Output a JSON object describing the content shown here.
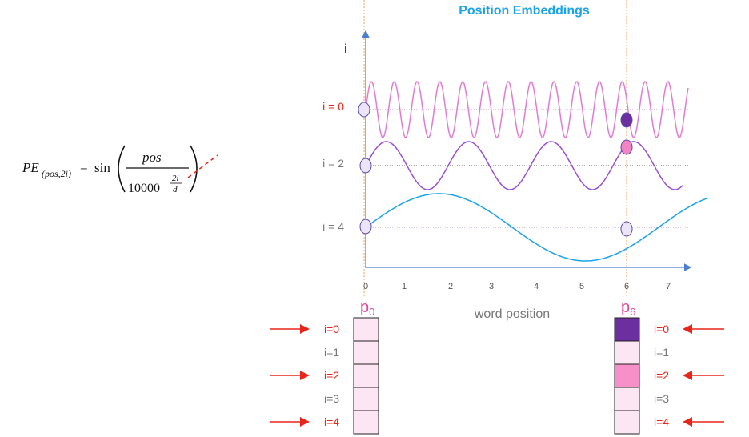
{
  "formula": {
    "lhs": "PE",
    "lhs_sub": "(pos,2i)",
    "equals": "=",
    "fn": "sin",
    "numerator": "pos",
    "base": "10000",
    "exp_num": "2i",
    "exp_den": "d"
  },
  "plot": {
    "title": "Position Embeddings",
    "y_label": "i",
    "rows": [
      "i = 0",
      "i = 2",
      "i = 4"
    ],
    "x_ticks": [
      "0",
      "1",
      "2",
      "3",
      "4",
      "5",
      "6",
      "7"
    ],
    "x_label": "word position"
  },
  "vectors": [
    {
      "name": "p",
      "sub": "0",
      "labels": [
        "i=0",
        "i=1",
        "i=2",
        "i=3",
        "i=4"
      ]
    },
    {
      "name": "p",
      "sub": "6",
      "labels": [
        "i=0",
        "i=1",
        "i=2",
        "i=3",
        "i=4"
      ]
    }
  ]
}
